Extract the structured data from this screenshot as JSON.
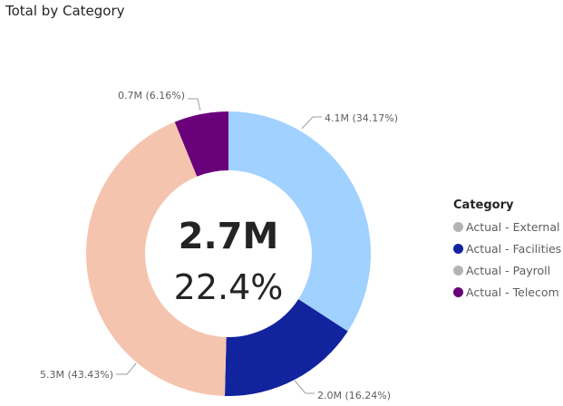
{
  "chart_data": {
    "type": "donut",
    "title": "Total by Category",
    "center": {
      "value": "2.7M",
      "percent": "22.4%"
    },
    "legend": {
      "title": "Category",
      "placement": "right",
      "items": [
        {
          "label": "Actual - External",
          "color": "#b3b3b3"
        },
        {
          "label": "Actual - Facilities",
          "color": "#12239e"
        },
        {
          "label": "Actual - Payroll",
          "color": "#b3b3b3"
        },
        {
          "label": "Actual - Telecom",
          "color": "#6b007b"
        }
      ]
    },
    "slices": [
      {
        "category": "Actual - External",
        "value_label": "4.1M",
        "percent": 34.17,
        "label": "4.1M (34.17%)",
        "color": "#a0d1ff"
      },
      {
        "category": "Actual - Facilities",
        "value_label": "2.0M",
        "percent": 16.24,
        "label": "2.0M (16.24%)",
        "color": "#12239e"
      },
      {
        "category": "Actual - Payroll",
        "value_label": "5.3M",
        "percent": 43.43,
        "label": "5.3M (43.43%)",
        "color": "#f5c4af"
      },
      {
        "category": "Actual - Telecom",
        "value_label": "0.7M",
        "percent": 6.16,
        "label": "0.7M (6.16%)",
        "color": "#6b007b"
      }
    ]
  }
}
